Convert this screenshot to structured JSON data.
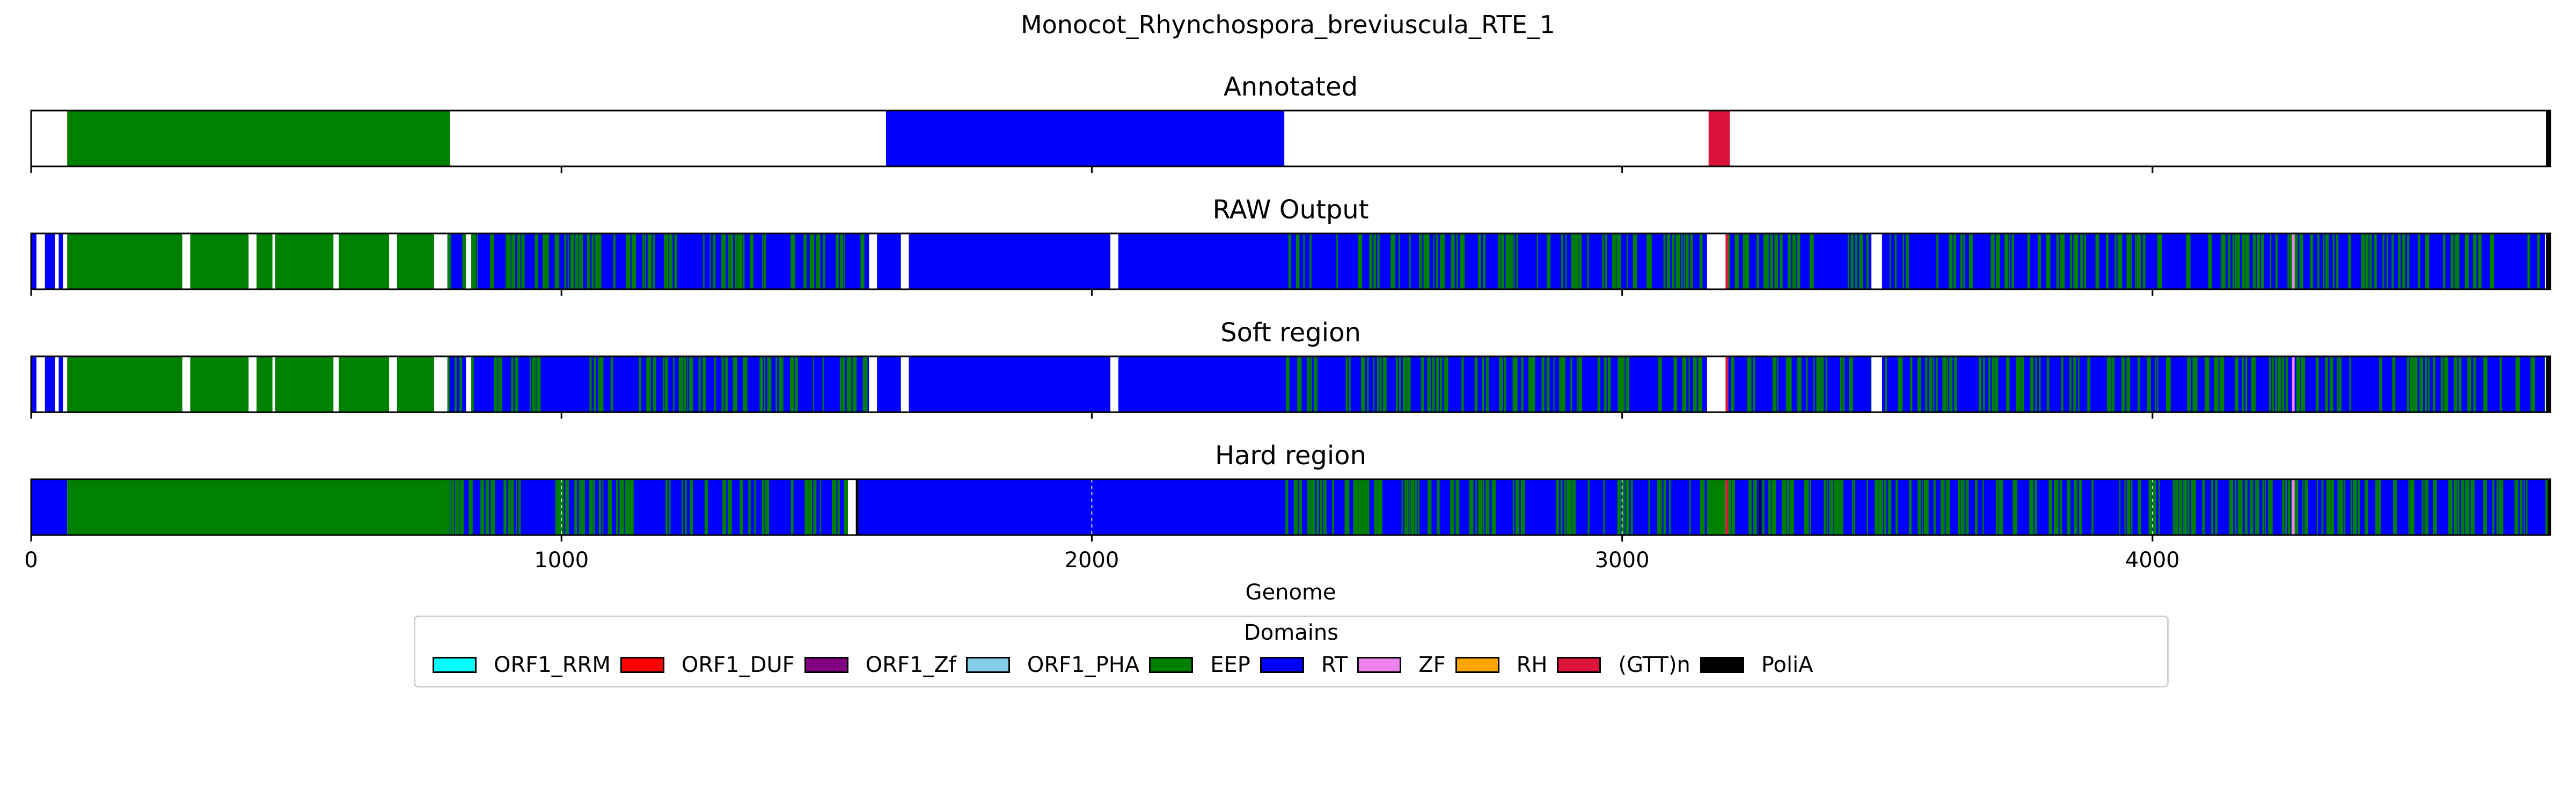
{
  "chart_data": {
    "type": "bar",
    "title": "Monocot_Rhynchospora_breviuscula_RTE_1",
    "xlabel": "Genome",
    "xlim": [
      0,
      4750
    ],
    "xticks": [
      0,
      1000,
      2000,
      3000,
      4000
    ],
    "xtick_labels": [
      "0",
      "1000",
      "2000",
      "3000",
      "4000"
    ],
    "grid": "dashed vertical lines at ticks (Hard region)",
    "colors": {
      "ORF1_RRM": "#00ffff",
      "ORF1_DUF": "#ff0000",
      "ORF1_Zf": "#800080",
      "ORF1_PHA": "#87ceeb",
      "EEP": "#008000",
      "RT": "#0000ff",
      "ZF": "#ee82ee",
      "RH": "#ffa500",
      "(GTT)n": "#dc143c",
      "PoliA": "#000000"
    },
    "legend": {
      "title": "Domains",
      "placement": "bottom-center",
      "entries": [
        "ORF1_RRM",
        "ORF1_DUF",
        "ORF1_Zf",
        "ORF1_PHA",
        "EEP",
        "RT",
        "ZF",
        "RH",
        "(GTT)n",
        "PoliA"
      ]
    },
    "panels": [
      {
        "title": "Annotated",
        "segments": [
          {
            "domain": "EEP",
            "start": 68,
            "end": 790
          },
          {
            "domain": "RT",
            "start": 1612,
            "end": 2363
          },
          {
            "domain": "(GTT)n",
            "start": 3163,
            "end": 3203
          },
          {
            "domain": "PoliA",
            "start": 4742,
            "end": 4750
          }
        ]
      },
      {
        "title": "RAW Output",
        "segments": [
          {
            "domain": "RT",
            "start": 0,
            "end": 10
          },
          {
            "domain": "RT",
            "start": 26,
            "end": 45
          },
          {
            "domain": "RT",
            "start": 52,
            "end": 60
          },
          {
            "domain": "EEP",
            "start": 68,
            "end": 285
          },
          {
            "domain": "EEP",
            "start": 300,
            "end": 410
          },
          {
            "domain": "EEP",
            "start": 425,
            "end": 455
          },
          {
            "domain": "EEP",
            "start": 460,
            "end": 570
          },
          {
            "domain": "EEP",
            "start": 580,
            "end": 675
          },
          {
            "domain": "EEP",
            "start": 690,
            "end": 760
          },
          {
            "domain": "mix",
            "start": 785,
            "end": 820
          },
          {
            "domain": "mix",
            "start": 830,
            "end": 1580
          },
          {
            "domain": "RT",
            "start": 1595,
            "end": 1640
          },
          {
            "domain": "RT",
            "start": 1655,
            "end": 2035
          },
          {
            "domain": "RT",
            "start": 2050,
            "end": 2360
          },
          {
            "domain": "mix",
            "start": 2360,
            "end": 3160
          },
          {
            "domain": "(GTT)n",
            "start": 3195,
            "end": 3200
          },
          {
            "domain": "mix",
            "start": 3200,
            "end": 3470
          },
          {
            "domain": "mix",
            "start": 3490,
            "end": 4740
          },
          {
            "domain": "ZF",
            "start": 4263,
            "end": 4268
          },
          {
            "domain": "PoliA",
            "start": 4742,
            "end": 4750
          }
        ]
      },
      {
        "title": "Soft region",
        "segments": [
          {
            "domain": "RT",
            "start": 0,
            "end": 10
          },
          {
            "domain": "RT",
            "start": 26,
            "end": 45
          },
          {
            "domain": "RT",
            "start": 52,
            "end": 60
          },
          {
            "domain": "EEP",
            "start": 68,
            "end": 285
          },
          {
            "domain": "EEP",
            "start": 300,
            "end": 410
          },
          {
            "domain": "EEP",
            "start": 425,
            "end": 455
          },
          {
            "domain": "EEP",
            "start": 460,
            "end": 570
          },
          {
            "domain": "EEP",
            "start": 580,
            "end": 675
          },
          {
            "domain": "EEP",
            "start": 690,
            "end": 760
          },
          {
            "domain": "mix",
            "start": 785,
            "end": 820
          },
          {
            "domain": "mix",
            "start": 830,
            "end": 1580
          },
          {
            "domain": "RT",
            "start": 1595,
            "end": 1640
          },
          {
            "domain": "RT",
            "start": 1655,
            "end": 2035
          },
          {
            "domain": "RT",
            "start": 2050,
            "end": 2360
          },
          {
            "domain": "mix",
            "start": 2360,
            "end": 3160
          },
          {
            "domain": "(GTT)n",
            "start": 3195,
            "end": 3200
          },
          {
            "domain": "mix",
            "start": 3200,
            "end": 3470
          },
          {
            "domain": "mix",
            "start": 3490,
            "end": 4740
          },
          {
            "domain": "ZF",
            "start": 4263,
            "end": 4268
          },
          {
            "domain": "PoliA",
            "start": 4742,
            "end": 4750
          }
        ]
      },
      {
        "title": "Hard region",
        "segments": [
          {
            "domain": "RT",
            "start": 0,
            "end": 68
          },
          {
            "domain": "EEP",
            "start": 68,
            "end": 785
          },
          {
            "domain": "mix",
            "start": 785,
            "end": 1540
          },
          {
            "domain": "PoliA",
            "start": 1555,
            "end": 1560
          },
          {
            "domain": "RT",
            "start": 1560,
            "end": 2365
          },
          {
            "domain": "mix",
            "start": 2365,
            "end": 3160
          },
          {
            "domain": "EEP",
            "start": 3160,
            "end": 3195
          },
          {
            "domain": "(GTT)n",
            "start": 3195,
            "end": 3200
          },
          {
            "domain": "PoliA",
            "start": 3258,
            "end": 3262
          },
          {
            "domain": "mix",
            "start": 3200,
            "end": 4745
          },
          {
            "domain": "ZF",
            "start": 4263,
            "end": 4268
          },
          {
            "domain": "PoliA",
            "start": 4745,
            "end": 4750
          }
        ]
      }
    ]
  }
}
